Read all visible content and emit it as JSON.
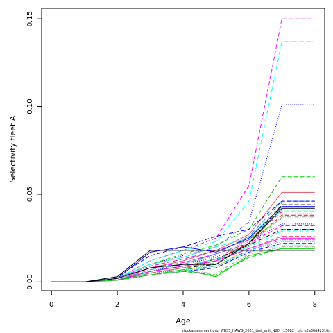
{
  "chart_data": {
    "type": "line",
    "xlabel": "Age",
    "ylabel": "Selectivity fleet A",
    "xlim": [
      -0.3,
      8.3
    ],
    "ylim": [
      -0.005,
      0.156
    ],
    "x_ticks": [
      0,
      2,
      4,
      6,
      8
    ],
    "y_ticks": [
      0.0,
      0.05,
      0.1,
      0.15
    ],
    "y_tick_labels": [
      "0.00",
      "0.05",
      "0.10",
      "0.15"
    ],
    "grid": false,
    "legend": "none",
    "x": [
      0,
      1,
      2,
      3,
      4,
      5,
      6,
      7,
      8
    ],
    "series": [
      {
        "color": "#FF00FF",
        "dash": "dashed",
        "values": [
          0,
          0,
          0.002,
          0.012,
          0.018,
          0.025,
          0.055,
          0.15,
          0.15
        ]
      },
      {
        "color": "#00FFFF",
        "dash": "dashdot",
        "values": [
          0,
          0,
          0.002,
          0.012,
          0.018,
          0.023,
          0.046,
          0.137,
          0.137
        ]
      },
      {
        "color": "#0000FF",
        "dash": "dotted",
        "values": [
          0,
          0,
          0.002,
          0.01,
          0.015,
          0.02,
          0.034,
          0.101,
          0.101
        ]
      },
      {
        "color": "#00CD00",
        "dash": "dashed",
        "values": [
          0,
          0,
          0.002,
          0.01,
          0.016,
          0.021,
          0.03,
          0.06,
          0.06
        ]
      },
      {
        "color": "#DF536B",
        "dash": "solid",
        "values": [
          0,
          0,
          0.001,
          0.008,
          0.012,
          0.018,
          0.027,
          0.051,
          0.051
        ]
      },
      {
        "color": "#2297E6",
        "dash": "longdash",
        "values": [
          0,
          0,
          0.001,
          0.007,
          0.01,
          0.016,
          0.026,
          0.046,
          0.046
        ]
      },
      {
        "color": "#0000FF",
        "dash": "dashed",
        "values": [
          0,
          0,
          0.003,
          0.015,
          0.02,
          0.026,
          0.03,
          0.046,
          0.046
        ]
      },
      {
        "color": "#61D04F",
        "dash": "dotted",
        "values": [
          0,
          0,
          0.001,
          0.006,
          0.009,
          0.012,
          0.024,
          0.045,
          0.045
        ]
      },
      {
        "color": "#000000",
        "dash": "dashed",
        "values": [
          0,
          0,
          0.001,
          0.005,
          0.008,
          0.01,
          0.022,
          0.044,
          0.044
        ]
      },
      {
        "color": "#666666",
        "dash": "dashdot",
        "values": [
          0,
          0,
          0.001,
          0.005,
          0.008,
          0.012,
          0.022,
          0.043,
          0.043
        ]
      },
      {
        "color": "#28E2E5",
        "dash": "solid",
        "values": [
          0,
          0,
          0.002,
          0.01,
          0.014,
          0.02,
          0.025,
          0.041,
          0.041
        ]
      },
      {
        "color": "#CD0BBC",
        "dash": "dashed",
        "values": [
          0,
          0,
          0.002,
          0.009,
          0.013,
          0.018,
          0.024,
          0.04,
          0.04
        ]
      },
      {
        "color": "#F5C710",
        "dash": "dotted",
        "values": [
          0,
          0,
          0.001,
          0.005,
          0.007,
          0.008,
          0.02,
          0.039,
          0.039
        ]
      },
      {
        "color": "#FF0000",
        "dash": "dashed",
        "values": [
          0,
          0,
          0.001,
          0.006,
          0.009,
          0.013,
          0.022,
          0.038,
          0.038
        ]
      },
      {
        "color": "#9E9E9E",
        "dash": "dashdot",
        "values": [
          0,
          0,
          0.001,
          0.005,
          0.008,
          0.011,
          0.021,
          0.037,
          0.037
        ]
      },
      {
        "color": "#00CD00",
        "dash": "dotted",
        "values": [
          0,
          0,
          0.001,
          0.006,
          0.01,
          0.015,
          0.024,
          0.036,
          0.036
        ]
      },
      {
        "color": "#0000FF",
        "dash": "dotted",
        "values": [
          0,
          0,
          0.001,
          0.006,
          0.01,
          0.014,
          0.023,
          0.033,
          0.033
        ]
      },
      {
        "color": "#FF00FF",
        "dash": "dashed",
        "values": [
          0,
          0,
          0.002,
          0.008,
          0.011,
          0.016,
          0.022,
          0.032,
          0.032
        ]
      },
      {
        "color": "#000000",
        "dash": "dashdot",
        "values": [
          0,
          0,
          0.001,
          0.006,
          0.009,
          0.013,
          0.021,
          0.03,
          0.03
        ]
      },
      {
        "color": "#00FFFF",
        "dash": "dashed",
        "values": [
          0,
          0,
          0.001,
          0.006,
          0.009,
          0.013,
          0.02,
          0.029,
          0.029
        ]
      },
      {
        "color": "#DF536B",
        "dash": "dashed",
        "values": [
          0,
          0,
          0.001,
          0.005,
          0.008,
          0.012,
          0.019,
          0.026,
          0.026
        ]
      },
      {
        "color": "#FF00FF",
        "dash": "solid",
        "values": [
          0,
          0,
          0.001,
          0.006,
          0.009,
          0.012,
          0.019,
          0.025,
          0.025
        ]
      },
      {
        "color": "#2297E6",
        "dash": "dashdot",
        "values": [
          0,
          0,
          0.001,
          0.004,
          0.007,
          0.009,
          0.018,
          0.024,
          0.024
        ]
      },
      {
        "color": "#00CD00",
        "dash": "dotted",
        "values": [
          0,
          0,
          0.001,
          0.005,
          0.007,
          0.01,
          0.018,
          0.023,
          0.023
        ]
      },
      {
        "color": "#0000FF",
        "dash": "dashed",
        "values": [
          0,
          0,
          0.001,
          0.004,
          0.006,
          0.008,
          0.017,
          0.022,
          0.022
        ]
      },
      {
        "color": "#28E2E5",
        "dash": "dotted",
        "values": [
          0,
          0,
          0.001,
          0.004,
          0.006,
          0.009,
          0.017,
          0.021,
          0.021
        ]
      },
      {
        "color": "#00CD00",
        "dash": "solid",
        "values": [
          0,
          0,
          0.001,
          0.004,
          0.007,
          0.003,
          0.015,
          0.019,
          0.019
        ]
      },
      {
        "color": "#9E9E9E",
        "dash": "dashdot",
        "values": [
          0,
          0,
          0.001,
          0.004,
          0.006,
          0.005,
          0.016,
          0.02,
          0.02
        ]
      },
      {
        "color": "#00CD00",
        "dash": "dashed",
        "values": [
          0,
          0,
          0.001,
          0.004,
          0.006,
          0.004,
          0.014,
          0.019,
          0.019
        ]
      },
      {
        "color": "#000000",
        "dash": "solid",
        "values": [
          0,
          0,
          0.003,
          0.018,
          0.018,
          0.018,
          0.018,
          0.018,
          0.018
        ]
      },
      {
        "color": "#0000FF",
        "dash": "solid",
        "values": [
          0,
          0,
          0.002,
          0.017,
          0.02,
          0.017,
          0.025,
          0.043,
          0.043
        ]
      },
      {
        "color": "#000000",
        "dash": "solid",
        "values": [
          0,
          0,
          0.002,
          0.008,
          0.01,
          0.01,
          0.022,
          0.042,
          0.042
        ]
      }
    ]
  },
  "footer": "stockassessment.org, WBSS_HAWG_2021_test_unit_N20, r15682 , git: e2a30d42316c"
}
